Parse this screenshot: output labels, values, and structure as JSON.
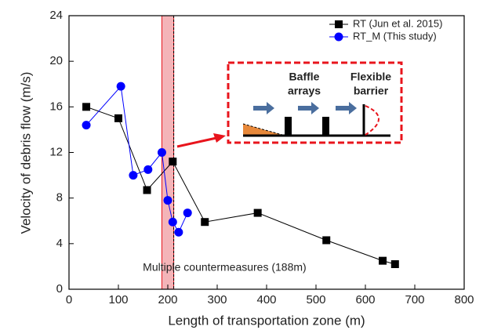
{
  "chart_data": {
    "type": "line",
    "x_label": "Length of transportation zone (m)",
    "y_label": "Velocity of debris flow (m/s)",
    "xlim": [
      0,
      800
    ],
    "xticks": [
      0,
      100,
      200,
      300,
      400,
      500,
      600,
      700,
      800
    ],
    "ylim": [
      0,
      24
    ],
    "yticks": [
      0,
      4,
      8,
      12,
      16,
      20,
      24
    ],
    "legend": "upper right",
    "series": [
      {
        "name": "RT (Jun et al. 2015)",
        "color": "#000000",
        "marker": "square",
        "x": [
          35,
          100,
          158,
          210,
          275,
          382,
          521,
          635,
          660
        ],
        "values": [
          16,
          15,
          8.7,
          11.2,
          5.9,
          6.7,
          4.3,
          2.5,
          2.2
        ]
      },
      {
        "name": "RT_M (This study)",
        "color": "#0000ff",
        "marker": "circle",
        "x": [
          35,
          105,
          130,
          160,
          188,
          200,
          210,
          222,
          240
        ],
        "values": [
          14.4,
          17.8,
          10,
          10.5,
          12,
          7.8,
          5.9,
          5,
          6.7
        ]
      }
    ],
    "band": [
      188,
      212
    ],
    "annotation": "Multiple countermeasures (188m)",
    "inset_labels": [
      [
        "Baffle",
        "arrays"
      ],
      [
        "Flexible",
        "barrier"
      ]
    ]
  }
}
